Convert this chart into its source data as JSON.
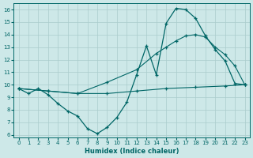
{
  "xlabel": "Humidex (Indice chaleur)",
  "xlim": [
    -0.5,
    23.5
  ],
  "ylim": [
    5.8,
    16.5
  ],
  "yticks": [
    6,
    7,
    8,
    9,
    10,
    11,
    12,
    13,
    14,
    15,
    16
  ],
  "xticks": [
    0,
    1,
    2,
    3,
    4,
    5,
    6,
    7,
    8,
    9,
    10,
    11,
    12,
    13,
    14,
    15,
    16,
    17,
    18,
    19,
    20,
    21,
    22,
    23
  ],
  "background_color": "#cde8e8",
  "grid_color": "#aacccc",
  "line_color": "#006666",
  "curve1_x": [
    0,
    1,
    2,
    3,
    4,
    5,
    6,
    7,
    8,
    9,
    10,
    11,
    12,
    13,
    14,
    15,
    16,
    17,
    18,
    19,
    20,
    21,
    22,
    23
  ],
  "curve1_y": [
    9.7,
    9.3,
    9.7,
    9.2,
    8.5,
    7.9,
    7.5,
    6.5,
    6.1,
    6.6,
    7.4,
    8.6,
    10.8,
    13.1,
    10.8,
    14.9,
    16.1,
    16.0,
    15.3,
    13.9,
    12.8,
    11.9,
    10.1,
    10.0
  ],
  "curve2_x": [
    0,
    3,
    6,
    9,
    12,
    14,
    15,
    16,
    17,
    18,
    19,
    20,
    21,
    22,
    23
  ],
  "curve2_y": [
    9.7,
    9.5,
    9.3,
    10.2,
    11.2,
    12.5,
    13.0,
    13.5,
    13.9,
    14.0,
    13.8,
    13.0,
    12.4,
    11.5,
    10.0
  ],
  "curve3_x": [
    0,
    3,
    6,
    9,
    12,
    15,
    18,
    21,
    23
  ],
  "curve3_y": [
    9.7,
    9.5,
    9.3,
    9.3,
    9.5,
    9.7,
    9.8,
    9.9,
    10.0
  ]
}
